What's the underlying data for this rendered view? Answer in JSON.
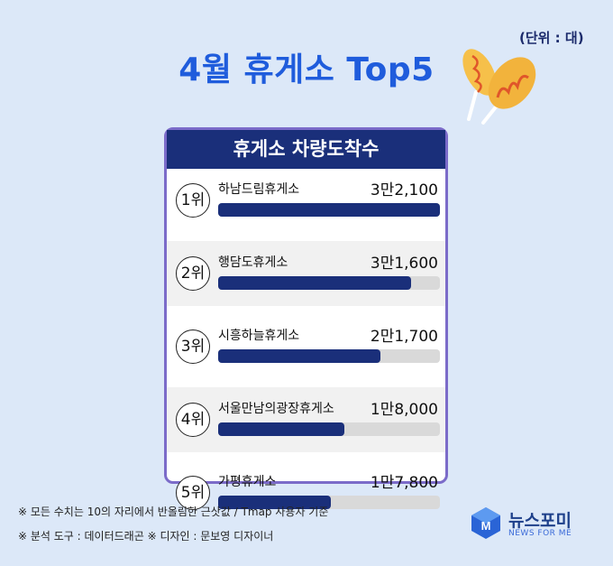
{
  "unit_label": "(단위 : 대)",
  "title": "4월 휴게소  Top5",
  "card_title": "휴게소 차량도착수",
  "chart_data": {
    "type": "bar",
    "title": "휴게소 차량도착수",
    "categories": [
      "하남드림휴게소",
      "행담도휴게소",
      "시흥하늘휴게소",
      "서울만남의광장휴게소",
      "가평휴게소"
    ],
    "ranks": [
      "1위",
      "2위",
      "3위",
      "4위",
      "5위"
    ],
    "value_labels": [
      "3만2,100",
      "3만1,600",
      "2만1,700",
      "1만8,000",
      "1만7,800"
    ],
    "values": [
      32100,
      31600,
      21700,
      18000,
      17800
    ],
    "bar_fill_fraction": [
      1.0,
      0.87,
      0.73,
      0.57,
      0.51
    ],
    "bar_color": "#1a2f7a",
    "track_color": "#d9d9d9"
  },
  "notes": {
    "line1": "※ 모든 수치는 10의 자리에서 반올림한 근삿값 / Tmap 사용자 기준",
    "line2": "※ 분석 도구 : 데이터드래곤   ※ 디자인 : 문보영 디자이너"
  },
  "logo": {
    "name": "뉴스포미",
    "sub": "NEWS FOR ME",
    "icon": "newsforme-logo-icon"
  },
  "colors": {
    "background": "#dce8f8",
    "title": "#1f5cdc",
    "header": "#1a2f7a",
    "card_border": "#7b6bc9"
  }
}
